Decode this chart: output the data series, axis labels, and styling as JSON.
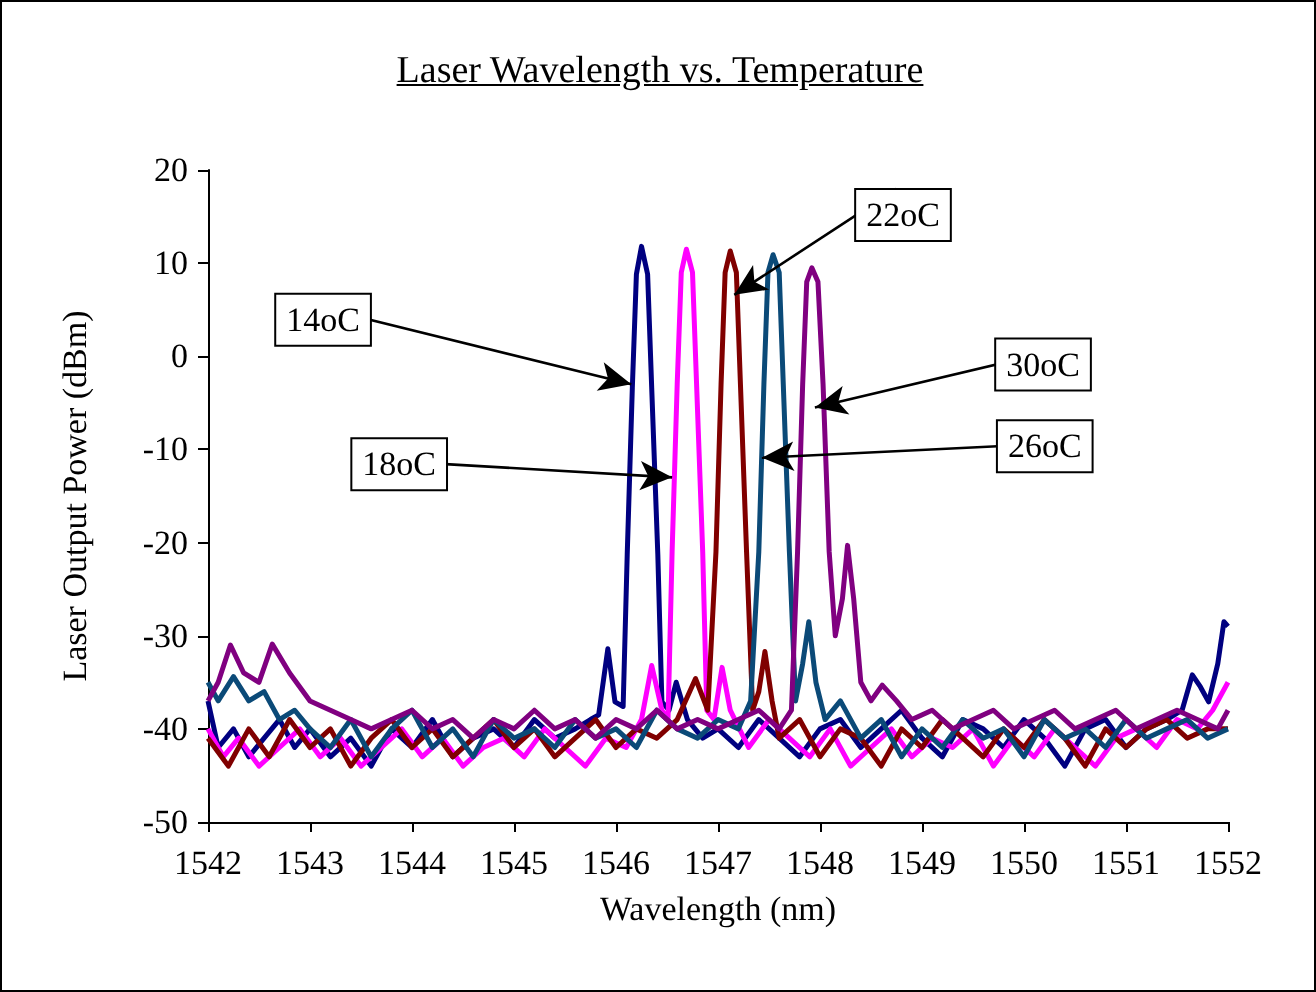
{
  "chart_data": {
    "type": "line",
    "title": "Laser Wavelength vs. Temperature",
    "xlabel": "Wavelength (nm)",
    "ylabel": "Laser Output Power (dBm)",
    "xlim": [
      1542,
      1552
    ],
    "xticks": [
      1542,
      1543,
      1544,
      1545,
      1546,
      1547,
      1548,
      1549,
      1550,
      1551,
      1552
    ],
    "ylim": [
      -50,
      20
    ],
    "yticks": [
      -50,
      -40,
      -30,
      -20,
      -10,
      0,
      10,
      20
    ],
    "grid": false,
    "marker": "none",
    "line_style": "solid",
    "annotations": [
      {
        "text": "14oC",
        "x": 1546.15,
        "y": -3
      },
      {
        "text": "18oC",
        "x": 1546.55,
        "y": -13
      },
      {
        "text": "22oC",
        "x": 1547.16,
        "y": 6.6
      },
      {
        "text": "26oC",
        "x": 1547.43,
        "y": -10.9
      },
      {
        "text": "30oC",
        "x": 1547.95,
        "y": -5.5
      }
    ],
    "series": [
      {
        "color": "#000080",
        "x": [
          1542,
          1542.1,
          1542.25,
          1542.4,
          1542.55,
          1542.7,
          1542.85,
          1543,
          1543.2,
          1543.4,
          1543.6,
          1543.8,
          1544,
          1544.2,
          1544.4,
          1544.6,
          1544.8,
          1545,
          1545.2,
          1545.4,
          1545.6,
          1545.75,
          1545.83,
          1545.92,
          1545.99,
          1546.07,
          1546.11,
          1546.16,
          1546.2,
          1546.25,
          1546.31,
          1546.35,
          1546.41,
          1546.45,
          1546.52,
          1546.59,
          1546.7,
          1546.85,
          1547,
          1547.2,
          1547.4,
          1547.6,
          1547.8,
          1548,
          1548.2,
          1548.4,
          1548.6,
          1548.8,
          1549,
          1549.2,
          1549.4,
          1549.6,
          1549.8,
          1550,
          1550.2,
          1550.4,
          1550.6,
          1550.8,
          1551,
          1551.2,
          1551.4,
          1551.55,
          1551.65,
          1551.73,
          1551.81,
          1551.9,
          1551.96,
          1552
        ],
        "values": [
          -37,
          -42,
          -40,
          -43,
          -41,
          -39,
          -42,
          -40,
          -43,
          -41,
          -44,
          -40,
          -42,
          -39,
          -43,
          -41,
          -40,
          -42,
          -39,
          -41,
          -40,
          -39,
          -38.5,
          -31.4,
          -37.1,
          -37.6,
          -21.3,
          -3.4,
          8.8,
          11.8,
          8.8,
          -3.4,
          -21.3,
          -37.1,
          -38,
          -35,
          -39,
          -41,
          -40,
          -42,
          -39,
          -41,
          -43,
          -40,
          -39,
          -42,
          -40,
          -38,
          -41,
          -43,
          -39,
          -40,
          -42,
          -39,
          -41,
          -44,
          -40,
          -39,
          -42,
          -40,
          -39,
          -38,
          -34.2,
          -35.5,
          -37.1,
          -33,
          -28.5,
          -29
        ]
      },
      {
        "color": "#ff00ff",
        "x": [
          1542,
          1542.15,
          1542.3,
          1542.5,
          1542.7,
          1542.9,
          1543.1,
          1543.3,
          1543.5,
          1543.7,
          1543.9,
          1544.1,
          1544.3,
          1544.5,
          1544.7,
          1544.9,
          1545.1,
          1545.3,
          1545.5,
          1545.7,
          1545.9,
          1546.1,
          1546.25,
          1546.35,
          1546.45,
          1546.51,
          1546.55,
          1546.6,
          1546.64,
          1546.69,
          1546.75,
          1546.79,
          1546.85,
          1546.89,
          1546.96,
          1547.04,
          1547.12,
          1547.3,
          1547.5,
          1547.7,
          1547.9,
          1548.1,
          1548.3,
          1548.5,
          1548.7,
          1548.9,
          1549.1,
          1549.3,
          1549.5,
          1549.7,
          1549.9,
          1550.1,
          1550.3,
          1550.5,
          1550.7,
          1550.9,
          1551.1,
          1551.3,
          1551.5,
          1551.7,
          1551.85,
          1552
        ],
        "values": [
          -40,
          -43,
          -41,
          -44,
          -42,
          -40,
          -43,
          -41,
          -44,
          -42,
          -40,
          -43,
          -41,
          -44,
          -42,
          -41,
          -43,
          -40,
          -42,
          -44,
          -41,
          -42,
          -39,
          -33.2,
          -38,
          -39,
          -21,
          -3,
          9,
          11.5,
          9,
          -3,
          -21,
          -38,
          -39,
          -33.4,
          -38,
          -42,
          -39,
          -41,
          -43,
          -40,
          -44,
          -42,
          -40,
          -43,
          -41,
          -42,
          -40,
          -44,
          -41,
          -43,
          -40,
          -42,
          -44,
          -41,
          -40,
          -42,
          -39,
          -40,
          -38,
          -35
        ]
      },
      {
        "color": "#800000",
        "x": [
          1542,
          1542.2,
          1542.4,
          1542.6,
          1542.8,
          1543,
          1543.2,
          1543.4,
          1543.6,
          1543.8,
          1544,
          1544.2,
          1544.4,
          1544.6,
          1544.8,
          1545,
          1545.2,
          1545.4,
          1545.6,
          1545.8,
          1546,
          1546.2,
          1546.4,
          1546.6,
          1546.78,
          1546.9,
          1546.98,
          1547.03,
          1547.07,
          1547.12,
          1547.18,
          1547.22,
          1547.28,
          1547.34,
          1547.4,
          1547.46,
          1547.53,
          1547.6,
          1547.8,
          1548,
          1548.2,
          1548.4,
          1548.6,
          1548.8,
          1549,
          1549.2,
          1549.4,
          1549.6,
          1549.8,
          1550,
          1550.2,
          1550.4,
          1550.6,
          1550.8,
          1551,
          1551.2,
          1551.4,
          1551.6,
          1551.8,
          1552
        ],
        "values": [
          -41,
          -44,
          -40,
          -43,
          -39,
          -42,
          -40,
          -44,
          -41,
          -39,
          -42,
          -40,
          -43,
          -41,
          -39,
          -42,
          -40,
          -43,
          -41,
          -39,
          -42,
          -40,
          -41,
          -39,
          -34.6,
          -38,
          -21,
          -3,
          9,
          11.3,
          9,
          -3,
          -21,
          -38,
          -36,
          -31.7,
          -37,
          -41,
          -39,
          -43,
          -40,
          -41,
          -44,
          -40,
          -42,
          -39,
          -41,
          -43,
          -40,
          -42,
          -39,
          -41,
          -44,
          -40,
          -42,
          -40,
          -39,
          -41,
          -40,
          -40
        ]
      },
      {
        "color": "#0b4a78",
        "x": [
          1542,
          1542.1,
          1542.25,
          1542.4,
          1542.55,
          1542.7,
          1542.85,
          1543,
          1543.2,
          1543.4,
          1543.6,
          1543.8,
          1544,
          1544.2,
          1544.4,
          1544.6,
          1544.8,
          1545,
          1545.2,
          1545.4,
          1545.6,
          1545.8,
          1546,
          1546.2,
          1546.4,
          1546.6,
          1546.8,
          1547,
          1547.2,
          1547.32,
          1547.4,
          1547.45,
          1547.49,
          1547.54,
          1547.6,
          1547.64,
          1547.7,
          1547.76,
          1547.83,
          1547.89,
          1547.96,
          1548.05,
          1548.2,
          1548.4,
          1548.6,
          1548.8,
          1549,
          1549.2,
          1549.4,
          1549.6,
          1549.8,
          1550,
          1550.2,
          1550.4,
          1550.6,
          1550.8,
          1551,
          1551.2,
          1551.4,
          1551.6,
          1551.8,
          1552
        ],
        "values": [
          -35,
          -37,
          -34.4,
          -37,
          -36,
          -39,
          -38,
          -40,
          -42,
          -39,
          -43,
          -40,
          -38,
          -42,
          -40,
          -43,
          -39,
          -41,
          -40,
          -42,
          -39,
          -41,
          -40,
          -42,
          -38,
          -40,
          -41,
          -39,
          -40,
          -37,
          -21,
          -3,
          9,
          10.9,
          9,
          -3,
          -21,
          -37,
          -33,
          -28.5,
          -35,
          -39,
          -37,
          -41,
          -39,
          -43,
          -40,
          -42,
          -39,
          -41,
          -40,
          -43,
          -39,
          -41,
          -40,
          -42,
          -39,
          -41,
          -40,
          -39,
          -41,
          -40
        ]
      },
      {
        "color": "#800080",
        "x": [
          1542,
          1542.1,
          1542.22,
          1542.35,
          1542.5,
          1542.63,
          1542.8,
          1543,
          1543.2,
          1543.4,
          1543.6,
          1543.8,
          1544,
          1544.2,
          1544.4,
          1544.6,
          1544.8,
          1545,
          1545.2,
          1545.4,
          1545.6,
          1545.8,
          1546,
          1546.2,
          1546.4,
          1546.6,
          1546.8,
          1547,
          1547.2,
          1547.4,
          1547.6,
          1547.72,
          1547.78,
          1547.83,
          1547.87,
          1547.92,
          1547.98,
          1548.03,
          1548.09,
          1548.15,
          1548.22,
          1548.27,
          1548.33,
          1548.4,
          1548.5,
          1548.61,
          1548.75,
          1548.9,
          1549.1,
          1549.3,
          1549.5,
          1549.7,
          1549.9,
          1550.1,
          1550.3,
          1550.5,
          1550.7,
          1550.9,
          1551.1,
          1551.3,
          1551.5,
          1551.7,
          1551.9,
          1552
        ],
        "values": [
          -37,
          -35,
          -31,
          -34,
          -35,
          -30.9,
          -34,
          -37,
          -38,
          -39,
          -40,
          -39,
          -38,
          -40,
          -39,
          -41,
          -39,
          -40,
          -38,
          -40,
          -39,
          -41,
          -39,
          -40,
          -38,
          -40,
          -39,
          -40,
          -39,
          -38,
          -40,
          -38,
          -21,
          -3,
          8,
          9.5,
          8,
          -3,
          -21,
          -30,
          -26,
          -20.3,
          -26,
          -35,
          -37,
          -35.3,
          -37,
          -39,
          -38,
          -40,
          -39,
          -38,
          -40,
          -39,
          -38,
          -40,
          -39,
          -38,
          -40,
          -39,
          -38,
          -39,
          -40,
          -38
        ]
      }
    ]
  }
}
